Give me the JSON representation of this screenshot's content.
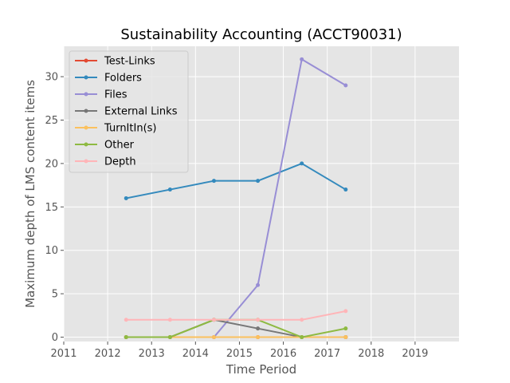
{
  "chart_data": {
    "type": "line",
    "title": "Sustainability Accounting (ACCT90031)",
    "xlabel": "Time Period",
    "ylabel": "Maximum depth of LMS content items",
    "xlim": [
      2011.0,
      2020.0
    ],
    "ylim": [
      -0.5,
      33.5
    ],
    "x_ticks": [
      2011,
      2012,
      2013,
      2014,
      2015,
      2016,
      2017,
      2018,
      2019
    ],
    "y_ticks": [
      0,
      5,
      10,
      15,
      20,
      25,
      30
    ],
    "grid": true,
    "legend_position": "upper-left",
    "x": [
      2012.42,
      2013.42,
      2014.42,
      2015.42,
      2016.42,
      2017.42
    ],
    "series": [
      {
        "name": "Test-Links",
        "color": "#E24A33",
        "values": [
          0,
          0,
          0,
          0,
          0,
          0
        ]
      },
      {
        "name": "Folders",
        "color": "#348ABD",
        "values": [
          16,
          17,
          18,
          18,
          20,
          17
        ]
      },
      {
        "name": "Files",
        "color": "#988ED5",
        "values": [
          0,
          0,
          0,
          6,
          32,
          29
        ]
      },
      {
        "name": "External Links",
        "color": "#777777",
        "values": [
          0,
          0,
          2,
          1,
          0,
          0
        ]
      },
      {
        "name": "TurnItIn(s)",
        "color": "#FBC15E",
        "values": [
          0,
          0,
          0,
          0,
          0,
          0
        ]
      },
      {
        "name": "Other",
        "color": "#8EBA42",
        "values": [
          0,
          0,
          2,
          2,
          0,
          1
        ]
      },
      {
        "name": "Depth",
        "color": "#FFB5B8",
        "values": [
          2,
          2,
          2,
          2,
          2,
          3
        ]
      }
    ]
  }
}
